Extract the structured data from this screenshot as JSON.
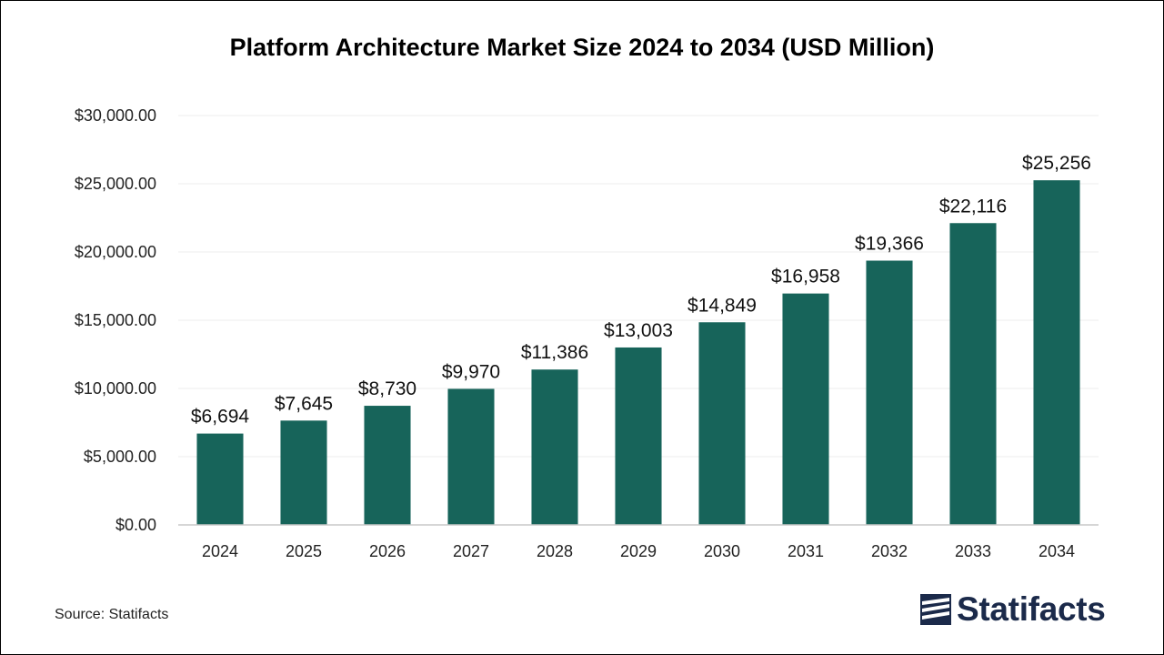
{
  "chart_data": {
    "type": "bar",
    "title": "Platform Architecture Market Size 2024 to 2034 (USD Million)",
    "xlabel": "",
    "ylabel": "",
    "categories": [
      "2024",
      "2025",
      "2026",
      "2027",
      "2028",
      "2029",
      "2030",
      "2031",
      "2032",
      "2033",
      "2034"
    ],
    "values": [
      6694,
      7645,
      8730,
      9970,
      11386,
      13003,
      14849,
      16958,
      19366,
      22116,
      25256
    ],
    "value_labels": [
      "$6,694",
      "$7,645",
      "$8,730",
      "$9,970",
      "$11,386",
      "$13,003",
      "$14,849",
      "$16,958",
      "$19,366",
      "$22,116",
      "$25,256"
    ],
    "ylim": [
      0,
      30000
    ],
    "yticks": [
      0,
      5000,
      10000,
      15000,
      20000,
      25000,
      30000
    ],
    "ytick_labels": [
      "$0.00",
      "$5,000.00",
      "$10,000.00",
      "$15,000.00",
      "$20,000.00",
      "$25,000.00",
      "$30,000.00"
    ],
    "grid": true,
    "legend": "none",
    "bar_color": "#17645a"
  },
  "footer": {
    "source": "Source: Statifacts",
    "brand": "Statifacts"
  }
}
